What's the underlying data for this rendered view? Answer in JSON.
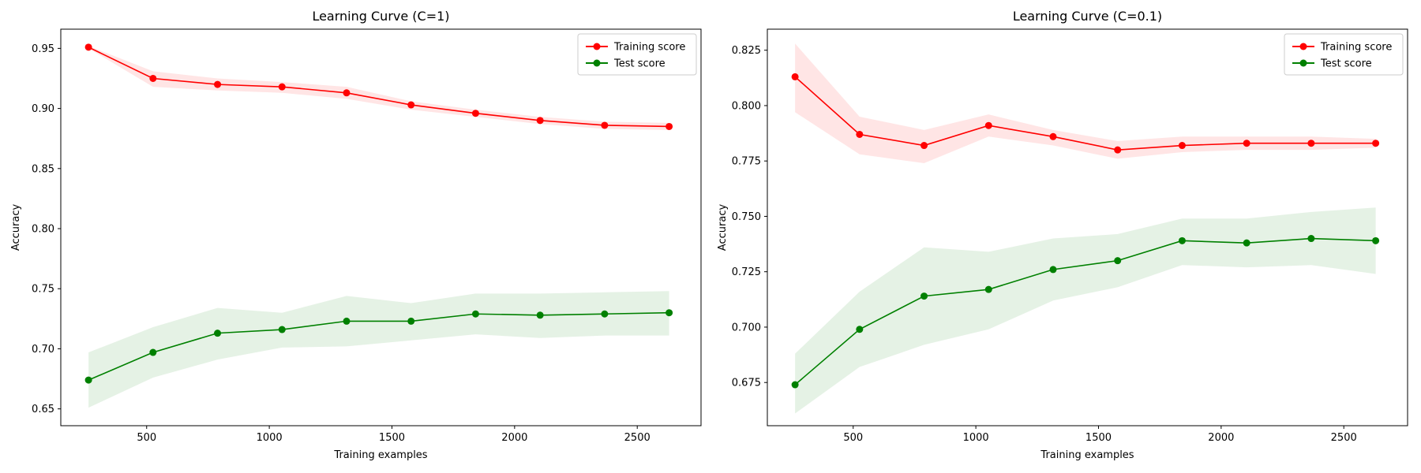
{
  "chart_data": [
    {
      "type": "line",
      "title": "Learning Curve (C=1)",
      "xlabel": "Training examples",
      "ylabel": "Accuracy",
      "xlim": [
        150,
        2760
      ],
      "ylim": [
        0.636,
        0.966
      ],
      "xticks": [
        500,
        1000,
        1500,
        2000,
        2500
      ],
      "yticks": [
        0.65,
        0.7,
        0.75,
        0.8,
        0.85,
        0.9,
        0.95
      ],
      "ytick_decimals": 2,
      "legend": "top-right",
      "x": [
        263,
        526,
        789,
        1052,
        1315,
        1578,
        1841,
        2104,
        2367,
        2630
      ],
      "series": [
        {
          "name": "Training score",
          "color": "#ff0000",
          "band_color": "#ff0000",
          "values": [
            0.951,
            0.925,
            0.92,
            0.918,
            0.913,
            0.903,
            0.896,
            0.89,
            0.886,
            0.885
          ],
          "lower": [
            0.95,
            0.918,
            0.915,
            0.913,
            0.908,
            0.899,
            0.893,
            0.887,
            0.883,
            0.882
          ],
          "upper": [
            0.952,
            0.931,
            0.925,
            0.922,
            0.918,
            0.906,
            0.899,
            0.893,
            0.889,
            0.888
          ]
        },
        {
          "name": "Test score",
          "color": "#008000",
          "band_color": "#008000",
          "values": [
            0.674,
            0.697,
            0.713,
            0.716,
            0.723,
            0.723,
            0.729,
            0.728,
            0.729,
            0.73
          ],
          "lower": [
            0.651,
            0.676,
            0.691,
            0.701,
            0.702,
            0.707,
            0.712,
            0.709,
            0.711,
            0.711
          ],
          "upper": [
            0.697,
            0.718,
            0.734,
            0.73,
            0.744,
            0.738,
            0.746,
            0.746,
            0.747,
            0.748
          ]
        }
      ]
    },
    {
      "type": "line",
      "title": "Learning Curve (C=0.1)",
      "xlabel": "Training examples",
      "ylabel": "Accuracy",
      "xlim": [
        150,
        2760
      ],
      "ylim": [
        0.6555,
        0.8345
      ],
      "xticks": [
        500,
        1000,
        1500,
        2000,
        2500
      ],
      "yticks": [
        0.675,
        0.7,
        0.725,
        0.75,
        0.775,
        0.8,
        0.825
      ],
      "ytick_decimals": 3,
      "legend": "top-right",
      "x": [
        263,
        526,
        789,
        1052,
        1315,
        1578,
        1841,
        2104,
        2367,
        2630
      ],
      "series": [
        {
          "name": "Training score",
          "color": "#ff0000",
          "band_color": "#ff0000",
          "values": [
            0.813,
            0.787,
            0.782,
            0.791,
            0.786,
            0.78,
            0.782,
            0.783,
            0.783,
            0.783
          ],
          "lower": [
            0.797,
            0.778,
            0.774,
            0.786,
            0.782,
            0.776,
            0.779,
            0.78,
            0.78,
            0.781
          ],
          "upper": [
            0.828,
            0.795,
            0.789,
            0.796,
            0.789,
            0.784,
            0.786,
            0.786,
            0.786,
            0.785
          ]
        },
        {
          "name": "Test score",
          "color": "#008000",
          "band_color": "#008000",
          "values": [
            0.674,
            0.699,
            0.714,
            0.717,
            0.726,
            0.73,
            0.739,
            0.738,
            0.74,
            0.739
          ],
          "lower": [
            0.661,
            0.682,
            0.692,
            0.699,
            0.712,
            0.718,
            0.728,
            0.727,
            0.728,
            0.724
          ],
          "upper": [
            0.688,
            0.716,
            0.736,
            0.734,
            0.74,
            0.742,
            0.749,
            0.749,
            0.752,
            0.754
          ]
        }
      ]
    }
  ]
}
